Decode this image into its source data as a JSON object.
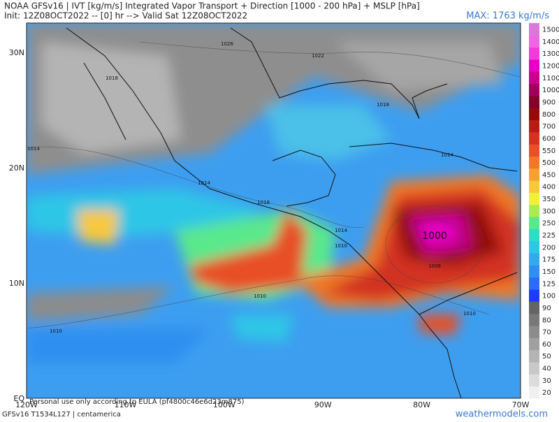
{
  "header": {
    "title": "NOAA GFSv16 | IVT [kg/m/s] Integrated Vapor Transport + Direction [1000 - 200 hPa] + MSLP [hPa]",
    "subtitle": "Init: 12Z08OCT2022 -- [0] hr --> Valid Sat 12Z08OCT2022",
    "max": "MAX: 1763 kg/m/s"
  },
  "map": {
    "lat_labels": [
      "30N",
      "20N",
      "10N",
      "EQ"
    ],
    "lon_labels": [
      "120W",
      "110W",
      "100W",
      "90W",
      "80W",
      "70W"
    ],
    "pressure_labels": [
      "1026",
      "1022",
      "1018",
      "1018",
      "1014",
      "1014",
      "1014",
      "1018",
      "1014",
      "1010",
      "1000",
      "1008",
      "1010",
      "1010",
      "1010"
    ]
  },
  "colorbar": {
    "levels": [
      20,
      30,
      40,
      50,
      60,
      70,
      80,
      90,
      100,
      125,
      150,
      175,
      200,
      225,
      250,
      300,
      350,
      400,
      450,
      500,
      550,
      600,
      700,
      800,
      900,
      1000,
      1100,
      1200,
      1300,
      1400,
      1500
    ],
    "colors": [
      "#f0f0f0",
      "#dcdcdc",
      "#c8c8c8",
      "#b4b4b4",
      "#a0a0a0",
      "#8c8c8c",
      "#787878",
      "#646464",
      "#1e3cff",
      "#2c6cf5",
      "#2e8ff0",
      "#33aaf0",
      "#2ec6e6",
      "#30dcc8",
      "#5ae88c",
      "#a8ec50",
      "#f0f03c",
      "#f8c83c",
      "#f8a032",
      "#f07828",
      "#e85028",
      "#d23220",
      "#b41e14",
      "#960a0a",
      "#82002a",
      "#a0005a",
      "#c8008c",
      "#e600c8",
      "#f03cdc",
      "#f064e6",
      "#dc78dc"
    ]
  },
  "footer": {
    "model": "GFSv16 T1534L127 | centamerica",
    "site": "weathermodels.com",
    "license": "Personal use only according to EULA (pf4800c46e6d23m875)"
  }
}
